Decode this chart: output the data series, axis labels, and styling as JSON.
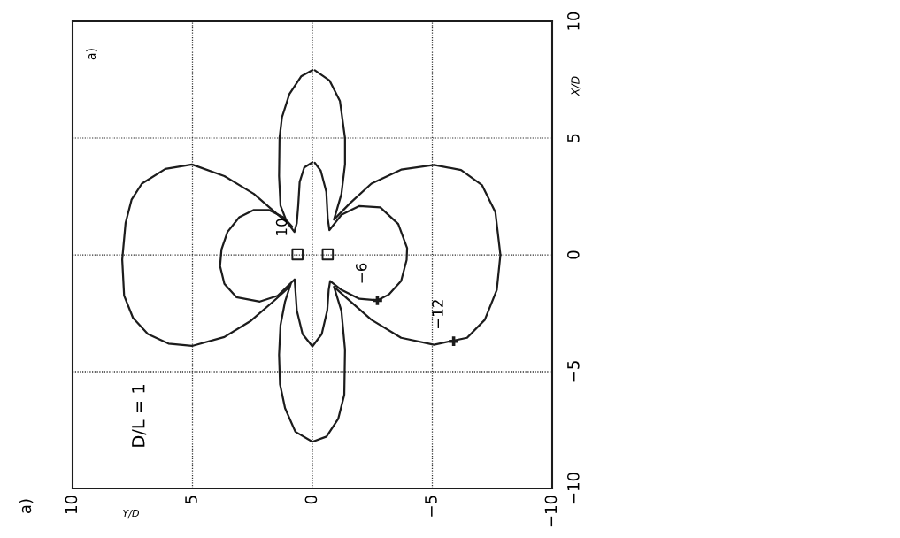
{
  "chart_data": {
    "type": "line",
    "xlabel": "Y/D",
    "ylabel": "X/D",
    "xlim": [
      10,
      -10
    ],
    "ylim": [
      -10,
      10
    ],
    "xticks": [
      10,
      5,
      0,
      {
        "value": -5,
        "label": "−5"
      },
      {
        "value": -10,
        "label": "−10"
      }
    ],
    "yticks": [
      {
        "value": -10,
        "label": "−10"
      },
      {
        "value": -5,
        "label": "−5"
      },
      0,
      5,
      10
    ],
    "grid": true,
    "series": [
      {
        "color": "#1c1c1c",
        "x": [
          0.0,
          0.47,
          0.96,
          1.27,
          1.37,
          1.39,
          1.33,
          1.1,
          0.84,
          1.45,
          2.44,
          3.67,
          5.02,
          6.13,
          7.11,
          7.54,
          7.79,
          7.93,
          7.85,
          7.48,
          6.86,
          6.0,
          5.02,
          3.67,
          2.56,
          1.57,
          1.02,
          0.9,
          1.14,
          1.33,
          1.39,
          1.35,
          1.14,
          0.71,
          0.0,
          -0.59,
          -1.08,
          -1.33,
          -1.36,
          -1.21,
          -0.9,
          -1.46,
          -2.46,
          -3.7,
          -5.07,
          -6.45,
          -7.19,
          -7.69,
          -7.84,
          -7.63,
          -7.07,
          -6.2,
          -5.07,
          -3.7,
          -2.46,
          -1.58,
          -0.9,
          -1.21,
          -1.36,
          -1.36,
          -1.15,
          -0.71,
          -0.1
        ],
        "values": [
          7.91,
          7.64,
          6.88,
          5.88,
          5.0,
          3.37,
          2.11,
          1.5,
          1.2,
          1.73,
          2.61,
          3.37,
          3.87,
          3.68,
          3.05,
          2.36,
          1.36,
          -0.2,
          -1.75,
          -2.7,
          -3.39,
          -3.8,
          -3.9,
          -3.52,
          -2.82,
          -1.94,
          -1.43,
          -1.24,
          -2.0,
          -3.01,
          -4.28,
          -5.54,
          -6.56,
          -7.57,
          -8.0,
          -7.78,
          -7.01,
          -5.99,
          -4.06,
          -2.4,
          -1.37,
          -1.88,
          -2.78,
          -3.55,
          -3.85,
          -3.55,
          -2.78,
          -1.5,
          0.0,
          1.83,
          2.99,
          3.63,
          3.85,
          3.65,
          3.05,
          2.22,
          1.51,
          2.6,
          3.88,
          5.0,
          6.58,
          7.47,
          7.9
        ]
      },
      {
        "color": "#1c1c1c",
        "x": [
          0.0,
          0.34,
          0.53,
          0.59,
          0.65,
          0.75,
          1.21,
          1.82,
          2.44,
          3.05,
          3.54,
          3.79,
          3.85,
          3.67,
          3.17,
          2.19,
          1.45,
          0.74,
          0.71,
          0.65,
          0.41,
          0.0,
          -0.39,
          -0.62,
          -0.68,
          -0.74,
          -1.21,
          -1.96,
          -2.71,
          -3.2,
          -3.7,
          -3.93,
          -3.95,
          -3.58,
          -2.83,
          -1.96,
          -1.21,
          -0.71,
          -0.64,
          -0.58,
          -0.35,
          -0.1
        ],
        "values": [
          3.96,
          3.74,
          3.12,
          2.11,
          1.36,
          0.98,
          1.61,
          1.92,
          1.92,
          1.61,
          0.98,
          0.23,
          -0.48,
          -1.24,
          -1.81,
          -2.0,
          -1.75,
          -1.05,
          -1.49,
          -2.38,
          -3.39,
          -3.92,
          -3.39,
          -2.38,
          -1.5,
          -1.12,
          -1.5,
          -1.88,
          -1.95,
          -1.69,
          -1.12,
          -0.22,
          0.29,
          1.32,
          2.03,
          2.09,
          1.71,
          1.06,
          1.56,
          2.7,
          3.6,
          3.94
        ]
      },
      {
        "type": "scatter",
        "marker": "square",
        "color": "#1c1c1c",
        "x": [
          0.62,
          -0.64
        ],
        "values": [
          0.02,
          0.02
        ]
      },
      {
        "type": "scatter",
        "marker": "cross",
        "color": "#1c1c1c",
        "x": [
          -2.71,
          -5.89
        ],
        "values": [
          -1.95,
          -3.7
        ]
      }
    ],
    "annotations": [
      "a)",
      "D/L = 1",
      "a)",
      {
        "text": "10",
        "x": 0.62,
        "y": 0.02
      },
      {
        "text": "−6",
        "x": -2.71,
        "y": -1.95
      },
      {
        "text": "−12",
        "x": -5.89,
        "y": -3.7
      }
    ]
  }
}
